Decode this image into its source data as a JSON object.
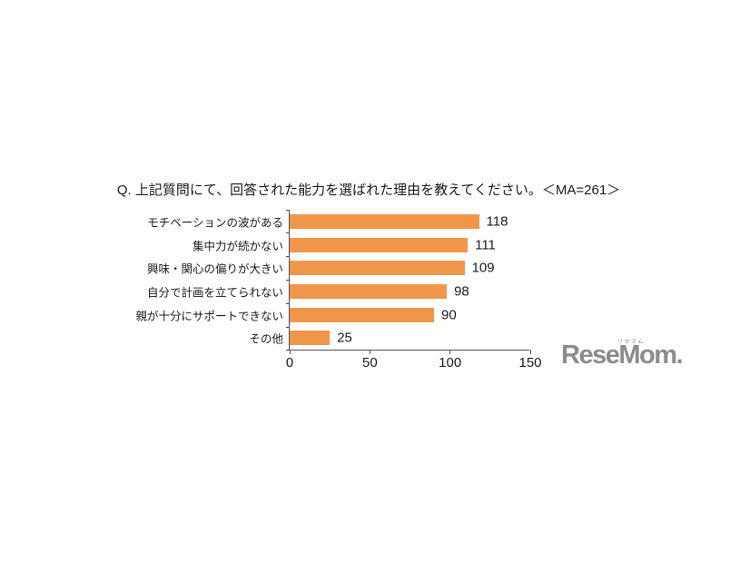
{
  "chart_data": {
    "type": "bar",
    "orientation": "horizontal",
    "title": "Q. 上記質問にて、回答された能力を選ばれた理由を教えてください。＜MA=261＞",
    "categories": [
      "モチベーションの波がある",
      "集中力が続かない",
      "興味・関心の偏りが大きい",
      "自分で計画を立てられない",
      "親が十分にサポートできない",
      "その他"
    ],
    "values": [
      118,
      111,
      109,
      98,
      90,
      25
    ],
    "xlim": [
      0,
      150
    ],
    "x_ticks": [
      0,
      50,
      100,
      150
    ],
    "bar_color": "#F0964B",
    "axis_color": "#4D4D4D",
    "grid": false,
    "legend": "none",
    "value_labels": true
  },
  "logo": {
    "text": "ReseMom.",
    "ruby": "リセマム",
    "color": "#8C8C8C"
  }
}
